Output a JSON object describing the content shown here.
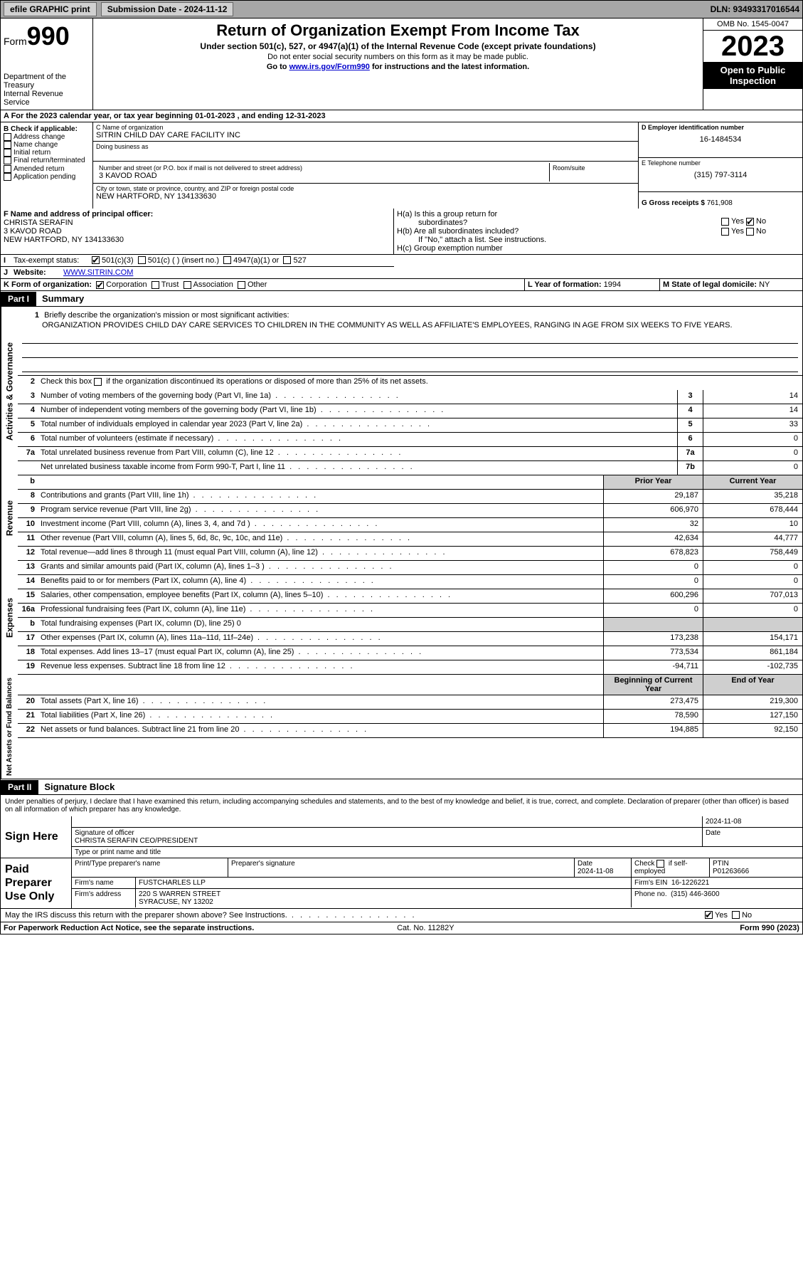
{
  "colors": {
    "topbar_bg": "#a7a7a7",
    "btn_bg": "#d0d0d0",
    "black": "#000000",
    "shade": "#cfcfcf",
    "link": "#0000cc"
  },
  "topbar": {
    "efile": "efile GRAPHIC print",
    "submission": "Submission Date - 2024-11-12",
    "dln": "DLN: 93493317016544"
  },
  "header": {
    "form_prefix": "Form",
    "form_number": "990",
    "dept": "Department of the Treasury",
    "irs": "Internal Revenue Service",
    "title": "Return of Organization Exempt From Income Tax",
    "sub1": "Under section 501(c), 527, or 4947(a)(1) of the Internal Revenue Code (except private foundations)",
    "sub2": "Do not enter social security numbers on this form as it may be made public.",
    "sub3_pre": "Go to ",
    "sub3_link": "www.irs.gov/Form990",
    "sub3_post": " for instructions and the latest information.",
    "omb": "OMB No. 1545-0047",
    "year": "2023",
    "open": "Open to Public Inspection"
  },
  "row_a": "A For the 2023 calendar year, or tax year beginning 01-01-2023   , and ending 12-31-2023",
  "box_b": {
    "title": "B Check if applicable:",
    "items": [
      "Address change",
      "Name change",
      "Initial return",
      "Final return/terminated",
      "Amended return",
      "Application pending"
    ]
  },
  "box_c": {
    "name_lbl": "C Name of organization",
    "name": "SITRIN CHILD DAY CARE FACILITY INC",
    "dba_lbl": "Doing business as",
    "dba": "",
    "street_lbl": "Number and street (or P.O. box if mail is not delivered to street address)",
    "street": "3 KAVOD ROAD",
    "room_lbl": "Room/suite",
    "city_lbl": "City or town, state or province, country, and ZIP or foreign postal code",
    "city": "NEW HARTFORD, NY  134133630"
  },
  "box_d": {
    "ein_lbl": "D Employer identification number",
    "ein": "16-1484534",
    "phone_lbl": "E Telephone number",
    "phone": "(315) 797-3114",
    "gross_lbl": "G Gross receipts $",
    "gross": "761,908"
  },
  "box_f": {
    "lbl": "F Name and address of principal officer:",
    "name": "CHRISTA SERAFIN",
    "addr1": "3 KAVOD ROAD",
    "addr2": "NEW HARTFORD, NY  134133630"
  },
  "box_h": {
    "ha": "H(a)  Is this a group return for",
    "ha2": "subordinates?",
    "hb": "H(b)  Are all subordinates included?",
    "hb2": "If \"No,\" attach a list. See instructions.",
    "hc": "H(c)  Group exemption number",
    "yes": "Yes",
    "no": "No"
  },
  "row_i": {
    "lbl": "Tax-exempt status:",
    "opts": [
      "501(c)(3)",
      "501(c) (   ) (insert no.)",
      "4947(a)(1) or",
      "527"
    ]
  },
  "row_j": {
    "lbl": "Website:",
    "val": "WWW.SITRIN.COM"
  },
  "row_k": {
    "lbl": "K Form of organization:",
    "opts": [
      "Corporation",
      "Trust",
      "Association",
      "Other"
    ],
    "l_lbl": "L Year of formation:",
    "l_val": "1994",
    "m_lbl": "M State of legal domicile:",
    "m_val": "NY"
  },
  "part1": {
    "tag": "Part I",
    "title": "Summary"
  },
  "sideA": "Activities & Governance",
  "sideR": "Revenue",
  "sideE": "Expenses",
  "sideN": "Net Assets or Fund Balances",
  "mission": {
    "lbl": "Briefly describe the organization's mission or most significant activities:",
    "text": "ORGANIZATION PROVIDES CHILD DAY CARE SERVICES TO CHILDREN IN THE COMMUNITY AS WELL AS AFFILIATE'S EMPLOYEES, RANGING IN AGE FROM SIX WEEKS TO FIVE YEARS."
  },
  "line2": "Check this box      if the organization discontinued its operations or disposed of more than 25% of its net assets.",
  "gov_lines": [
    {
      "n": "3",
      "d": "Number of voting members of the governing body (Part VI, line 1a)",
      "box": "3",
      "v": "14"
    },
    {
      "n": "4",
      "d": "Number of independent voting members of the governing body (Part VI, line 1b)",
      "box": "4",
      "v": "14"
    },
    {
      "n": "5",
      "d": "Total number of individuals employed in calendar year 2023 (Part V, line 2a)",
      "box": "5",
      "v": "33"
    },
    {
      "n": "6",
      "d": "Total number of volunteers (estimate if necessary)",
      "box": "6",
      "v": "0"
    },
    {
      "n": "7a",
      "d": "Total unrelated business revenue from Part VIII, column (C), line 12",
      "box": "7a",
      "v": "0"
    },
    {
      "n": "",
      "d": "Net unrelated business taxable income from Form 990-T, Part I, line 11",
      "box": "7b",
      "v": "0"
    }
  ],
  "col_hdr": {
    "b": "b",
    "prior": "Prior Year",
    "current": "Current Year"
  },
  "rev_lines": [
    {
      "n": "8",
      "d": "Contributions and grants (Part VIII, line 1h)",
      "p": "29,187",
      "c": "35,218"
    },
    {
      "n": "9",
      "d": "Program service revenue (Part VIII, line 2g)",
      "p": "606,970",
      "c": "678,444"
    },
    {
      "n": "10",
      "d": "Investment income (Part VIII, column (A), lines 3, 4, and 7d )",
      "p": "32",
      "c": "10"
    },
    {
      "n": "11",
      "d": "Other revenue (Part VIII, column (A), lines 5, 6d, 8c, 9c, 10c, and 11e)",
      "p": "42,634",
      "c": "44,777"
    },
    {
      "n": "12",
      "d": "Total revenue—add lines 8 through 11 (must equal Part VIII, column (A), line 12)",
      "p": "678,823",
      "c": "758,449"
    }
  ],
  "exp_lines": [
    {
      "n": "13",
      "d": "Grants and similar amounts paid (Part IX, column (A), lines 1–3 )",
      "p": "0",
      "c": "0"
    },
    {
      "n": "14",
      "d": "Benefits paid to or for members (Part IX, column (A), line 4)",
      "p": "0",
      "c": "0"
    },
    {
      "n": "15",
      "d": "Salaries, other compensation, employee benefits (Part IX, column (A), lines 5–10)",
      "p": "600,296",
      "c": "707,013"
    },
    {
      "n": "16a",
      "d": "Professional fundraising fees (Part IX, column (A), line 11e)",
      "p": "0",
      "c": "0"
    }
  ],
  "exp_b": {
    "n": "b",
    "d": "Total fundraising expenses (Part IX, column (D), line 25) 0"
  },
  "exp_lines2": [
    {
      "n": "17",
      "d": "Other expenses (Part IX, column (A), lines 11a–11d, 11f–24e)",
      "p": "173,238",
      "c": "154,171"
    },
    {
      "n": "18",
      "d": "Total expenses. Add lines 13–17 (must equal Part IX, column (A), line 25)",
      "p": "773,534",
      "c": "861,184"
    },
    {
      "n": "19",
      "d": "Revenue less expenses. Subtract line 18 from line 12",
      "p": "-94,711",
      "c": "-102,735"
    }
  ],
  "net_hdr": {
    "b": "Beginning of Current Year",
    "e": "End of Year"
  },
  "net_lines": [
    {
      "n": "20",
      "d": "Total assets (Part X, line 16)",
      "p": "273,475",
      "c": "219,300"
    },
    {
      "n": "21",
      "d": "Total liabilities (Part X, line 26)",
      "p": "78,590",
      "c": "127,150"
    },
    {
      "n": "22",
      "d": "Net assets or fund balances. Subtract line 21 from line 20",
      "p": "194,885",
      "c": "92,150"
    }
  ],
  "part2": {
    "tag": "Part II",
    "title": "Signature Block"
  },
  "penalty": "Under penalties of perjury, I declare that I have examined this return, including accompanying schedules and statements, and to the best of my knowledge and belief, it is true, correct, and complete. Declaration of preparer (other than officer) is based on all information of which preparer has any knowledge.",
  "sign": {
    "here": "Sign Here",
    "date_top": "2024-11-08",
    "sig_lbl": "Signature of officer",
    "officer": "CHRISTA SERAFIN  CEO/PRESIDENT",
    "type_lbl": "Type or print name and title",
    "date_lbl": "Date"
  },
  "paid": {
    "label": "Paid Preparer Use Only",
    "p_name_lbl": "Print/Type preparer's name",
    "p_sig_lbl": "Preparer's signature",
    "p_date_lbl": "Date",
    "p_date": "2024-11-08",
    "check_lbl": "Check       if self-employed",
    "ptin_lbl": "PTIN",
    "ptin": "P01263666",
    "firm_name_lbl": "Firm's name",
    "firm_name": "FUSTCHARLES LLP",
    "firm_ein_lbl": "Firm's EIN",
    "firm_ein": "16-1226221",
    "firm_addr_lbl": "Firm's address",
    "firm_addr1": "220 S WARREN STREET",
    "firm_addr2": "SYRACUSE, NY  13202",
    "phone_lbl": "Phone no.",
    "phone": "(315) 446-3600"
  },
  "discuss": "May the IRS discuss this return with the preparer shown above? See Instructions.",
  "footer": {
    "left": "For Paperwork Reduction Act Notice, see the separate instructions.",
    "mid": "Cat. No. 11282Y",
    "right": "Form 990 (2023)"
  }
}
